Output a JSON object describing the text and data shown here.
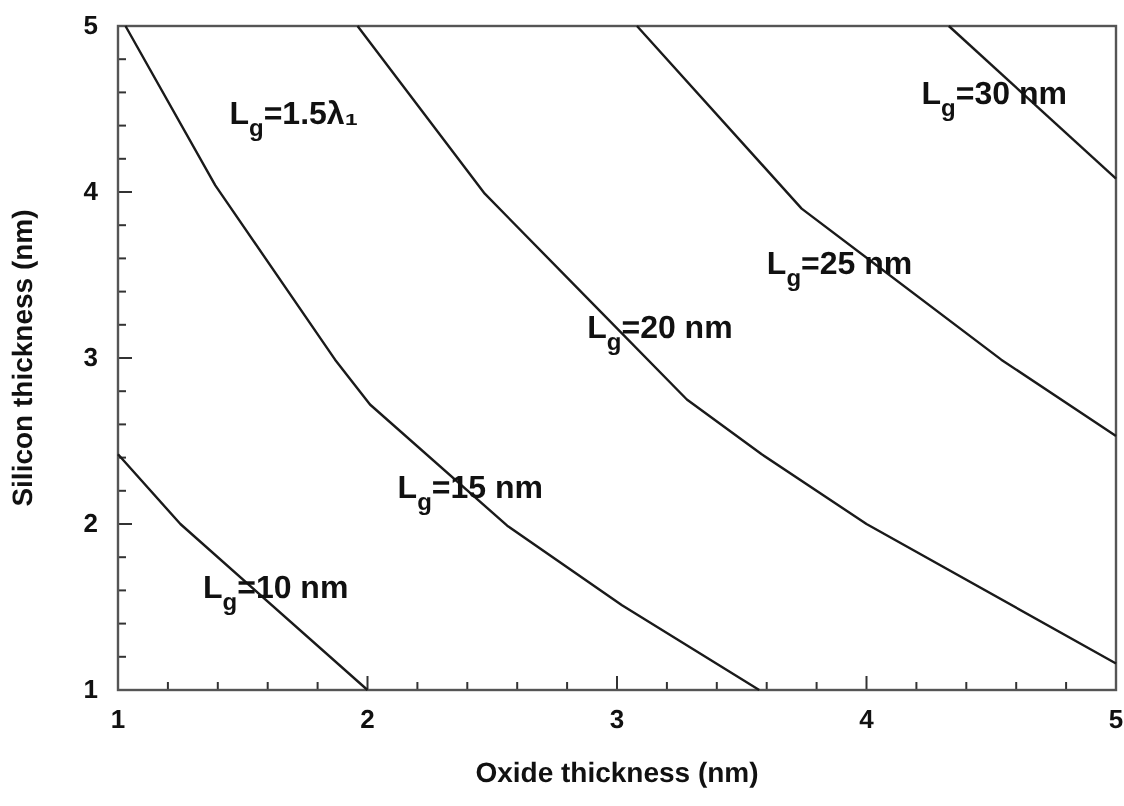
{
  "chart_data": {
    "type": "line",
    "xlabel": "Oxide thickness (nm)",
    "ylabel": "Silicon thickness (nm)",
    "xlim": [
      1,
      5
    ],
    "ylim": [
      1,
      5
    ],
    "xticks": [
      1,
      {
        "value": 1.2,
        "label": null
      },
      {
        "value": 1.4,
        "label": null
      },
      {
        "value": 1.6,
        "label": null
      },
      {
        "value": 1.8,
        "label": null
      },
      2,
      {
        "value": 2.2,
        "label": null
      },
      {
        "value": 2.4,
        "label": null
      },
      {
        "value": 2.6,
        "label": null
      },
      {
        "value": 2.8,
        "label": null
      },
      3,
      {
        "value": 3.2,
        "label": null
      },
      {
        "value": 3.4,
        "label": null
      },
      {
        "value": 3.6,
        "label": null
      },
      {
        "value": 3.8,
        "label": null
      },
      4,
      {
        "value": 4.2,
        "label": null
      },
      {
        "value": 4.4,
        "label": null
      },
      {
        "value": 4.6,
        "label": null
      },
      {
        "value": 4.8,
        "label": null
      },
      5
    ],
    "yticks": [
      1,
      {
        "value": 1.2,
        "label": null
      },
      {
        "value": 1.4,
        "label": null
      },
      {
        "value": 1.6,
        "label": null
      },
      {
        "value": 1.8,
        "label": null
      },
      2,
      {
        "value": 2.2,
        "label": null
      },
      {
        "value": 2.4,
        "label": null
      },
      {
        "value": 2.6,
        "label": null
      },
      {
        "value": 2.8,
        "label": null
      },
      3,
      {
        "value": 3.2,
        "label": null
      },
      {
        "value": 3.4,
        "label": null
      },
      {
        "value": 3.6,
        "label": null
      },
      {
        "value": 3.8,
        "label": null
      },
      4,
      {
        "value": 4.2,
        "label": null
      },
      {
        "value": 4.4,
        "label": null
      },
      {
        "value": 4.6,
        "label": null
      },
      {
        "value": 4.8,
        "label": null
      },
      5
    ],
    "grid": false,
    "marker": "none",
    "line_style": "solid",
    "series": [
      {
        "name": "L$_{g}$=10 nm",
        "color": "#1a1a1a",
        "x": [
          1,
          1.25,
          2
        ],
        "values": [
          2.42,
          2.0,
          1
        ]
      },
      {
        "name": "L$_{g}$=15 nm",
        "color": "#1a1a1a",
        "x": [
          1.03,
          1.39,
          1.87,
          2.01,
          2.56,
          3.02,
          3.57
        ],
        "values": [
          5,
          4.04,
          2.99,
          2.72,
          1.99,
          1.51,
          1
        ]
      },
      {
        "name": "L$_{g}$=20 nm",
        "color": "#1a1a1a",
        "x": [
          1.96,
          2.47,
          2.94,
          3.28,
          3.58,
          4.0,
          5
        ],
        "values": [
          5,
          3.99,
          3.27,
          2.75,
          2.42,
          2.0,
          1.16
        ]
      },
      {
        "name": "L$_{g}$=25 nm",
        "color": "#1a1a1a",
        "x": [
          3.08,
          3.74,
          4.54,
          5
        ],
        "values": [
          5,
          3.9,
          2.99,
          2.53
        ]
      },
      {
        "name": "L$_{g}$=30 nm",
        "color": "#1a1a1a",
        "x": [
          4.33,
          5
        ],
        "values": [
          5,
          4.08
        ]
      }
    ],
    "annotations": [
      "L$_{g}$=1.5λ₁"
    ]
  }
}
